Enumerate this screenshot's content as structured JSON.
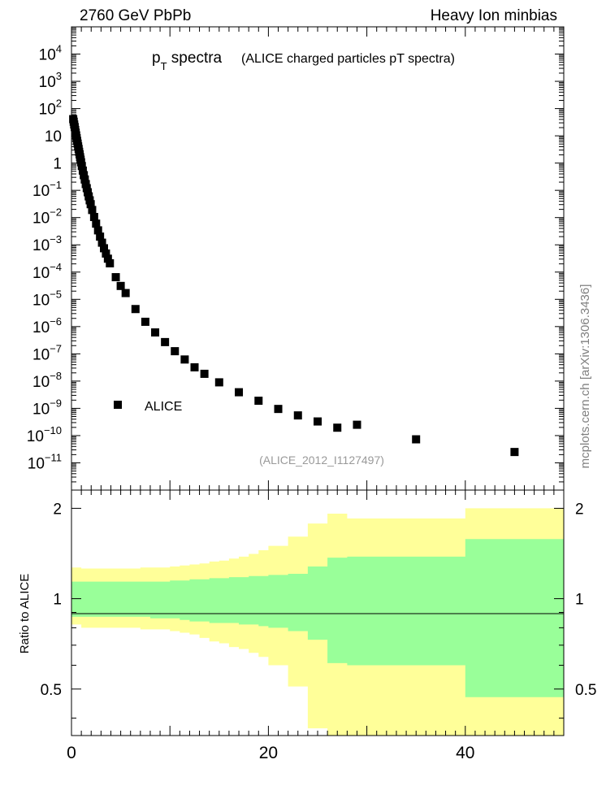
{
  "header": {
    "left": "2760 GeV PbPb",
    "right": "Heavy Ion minbias"
  },
  "side_label": "mcplots.cern.ch [arXiv:1306.3436]",
  "chart_data": [
    {
      "type": "scatter",
      "title_main": "p",
      "title_sub": "T",
      "title_word": " spectra",
      "title_note": "(ALICE charged particles pT spectra)",
      "analysis_tag": "(ALICE_2012_I1127497)",
      "y_scale": "log",
      "ylim": [
        1e-12,
        100000.0
      ],
      "xlim": [
        0,
        50
      ],
      "y_tick_labels": [
        {
          "base": "10",
          "exp": "4",
          "value": 10000.0
        },
        {
          "base": "10",
          "exp": "3",
          "value": 1000.0
        },
        {
          "base": "10",
          "exp": "2",
          "value": 100.0
        },
        {
          "base": "10",
          "exp": "",
          "value": 10
        },
        {
          "base": "1",
          "exp": "",
          "value": 1
        },
        {
          "base": "10",
          "exp": "−1",
          "value": 0.1
        },
        {
          "base": "10",
          "exp": "−2",
          "value": 0.01
        },
        {
          "base": "10",
          "exp": "−3",
          "value": 0.001
        },
        {
          "base": "10",
          "exp": "−4",
          "value": 0.0001
        },
        {
          "base": "10",
          "exp": "−5",
          "value": 1e-05
        },
        {
          "base": "10",
          "exp": "−6",
          "value": 1e-06
        },
        {
          "base": "10",
          "exp": "−7",
          "value": 1e-07
        },
        {
          "base": "10",
          "exp": "−8",
          "value": 1e-08
        },
        {
          "base": "10",
          "exp": "−9",
          "value": 1e-09
        },
        {
          "base": "10",
          "exp": "−10",
          "value": 1e-10
        },
        {
          "base": "10",
          "exp": "−11",
          "value": 1e-11
        }
      ],
      "legend": {
        "label": "ALICE",
        "position": "lower-left"
      },
      "series": [
        {
          "name": "ALICE",
          "color": "#000000",
          "marker": "square",
          "points": [
            [
              0.175,
              41
            ],
            [
              0.225,
              33
            ],
            [
              0.275,
              26
            ],
            [
              0.325,
              21
            ],
            [
              0.375,
              16.5
            ],
            [
              0.425,
              13
            ],
            [
              0.475,
              10.4
            ],
            [
              0.525,
              8.2
            ],
            [
              0.575,
              6.5
            ],
            [
              0.625,
              5.2
            ],
            [
              0.675,
              4.1
            ],
            [
              0.725,
              3.3
            ],
            [
              0.775,
              2.6
            ],
            [
              0.825,
              2.1
            ],
            [
              0.875,
              1.65
            ],
            [
              0.925,
              1.33
            ],
            [
              0.975,
              1.07
            ],
            [
              1.05,
              0.78
            ],
            [
              1.15,
              0.53
            ],
            [
              1.25,
              0.36
            ],
            [
              1.35,
              0.25
            ],
            [
              1.45,
              0.17
            ],
            [
              1.55,
              0.12
            ],
            [
              1.65,
              0.085
            ],
            [
              1.75,
              0.06
            ],
            [
              1.85,
              0.043
            ],
            [
              1.95,
              0.031
            ],
            [
              2.1,
              0.019
            ],
            [
              2.3,
              0.0105
            ],
            [
              2.5,
              0.006
            ],
            [
              2.7,
              0.0034
            ],
            [
              2.9,
              0.002
            ],
            [
              3.1,
              0.0012
            ],
            [
              3.3,
              0.00075
            ],
            [
              3.5,
              0.00048
            ],
            [
              3.7,
              0.00031
            ],
            [
              3.9,
              0.00021
            ],
            [
              4.5,
              6.5e-05
            ],
            [
              5.0,
              3.1e-05
            ],
            [
              5.5,
              1.7e-05
            ],
            [
              6.5,
              4.4e-06
            ],
            [
              7.5,
              1.5e-06
            ],
            [
              8.5,
              6.1e-07
            ],
            [
              9.5,
              2.7e-07
            ],
            [
              10.5,
              1.25e-07
            ],
            [
              11.5,
              6.2e-08
            ],
            [
              12.5,
              3.2e-08
            ],
            [
              13.5,
              1.85e-08
            ],
            [
              15,
              9e-09
            ],
            [
              17,
              3.9e-09
            ],
            [
              19,
              1.9e-09
            ],
            [
              21,
              9.5e-10
            ],
            [
              23,
              5.5e-10
            ],
            [
              25,
              3.3e-10
            ],
            [
              27,
              1.95e-10
            ],
            [
              29,
              2.5e-10
            ],
            [
              35,
              7.3e-11
            ],
            [
              45,
              2.5e-11
            ]
          ]
        }
      ]
    },
    {
      "type": "area",
      "ylabel": "Ratio to ALICE",
      "xlim": [
        0,
        50
      ],
      "ylim": [
        0.35,
        2.3
      ],
      "y_scale": "log",
      "x_ticks": [
        0,
        20,
        40
      ],
      "y_ticks": [
        0.5,
        1,
        2
      ],
      "reference_line": 1,
      "bands": [
        {
          "name": "stat",
          "color": "#99ff99"
        },
        {
          "name": "total",
          "color": "#ffff99"
        }
      ],
      "bins": {
        "edges": [
          0,
          1,
          2,
          3,
          4,
          5,
          6,
          7,
          8,
          9,
          10,
          11,
          12,
          13,
          14,
          15,
          16,
          17,
          18,
          19,
          20,
          22,
          24,
          26,
          28,
          30,
          32,
          34,
          36,
          38,
          40,
          45,
          50
        ],
        "inner_hi": [
          1.14,
          1.14,
          1.14,
          1.14,
          1.14,
          1.14,
          1.14,
          1.14,
          1.14,
          1.14,
          1.15,
          1.15,
          1.16,
          1.16,
          1.17,
          1.17,
          1.18,
          1.18,
          1.19,
          1.19,
          1.2,
          1.21,
          1.28,
          1.37,
          1.38,
          1.38,
          1.38,
          1.38,
          1.38,
          1.38,
          1.58,
          1.58
        ],
        "inner_lo": [
          0.87,
          0.87,
          0.87,
          0.87,
          0.87,
          0.87,
          0.87,
          0.87,
          0.86,
          0.86,
          0.86,
          0.85,
          0.84,
          0.84,
          0.83,
          0.83,
          0.83,
          0.82,
          0.82,
          0.81,
          0.8,
          0.78,
          0.73,
          0.61,
          0.6,
          0.6,
          0.6,
          0.6,
          0.6,
          0.6,
          0.47,
          0.47
        ],
        "outer_hi": [
          1.27,
          1.26,
          1.26,
          1.26,
          1.26,
          1.26,
          1.26,
          1.27,
          1.27,
          1.27,
          1.28,
          1.29,
          1.3,
          1.31,
          1.33,
          1.34,
          1.36,
          1.38,
          1.41,
          1.45,
          1.5,
          1.61,
          1.78,
          1.92,
          1.85,
          1.85,
          1.85,
          1.85,
          1.85,
          1.85,
          2.0,
          2.0
        ],
        "outer_lo": [
          0.82,
          0.8,
          0.8,
          0.8,
          0.8,
          0.8,
          0.8,
          0.79,
          0.79,
          0.79,
          0.78,
          0.77,
          0.76,
          0.74,
          0.72,
          0.71,
          0.69,
          0.68,
          0.66,
          0.64,
          0.6,
          0.51,
          0.37,
          0.35,
          0.35,
          0.35,
          0.35,
          0.35,
          0.35,
          0.35,
          0.35,
          0.35
        ]
      }
    }
  ]
}
